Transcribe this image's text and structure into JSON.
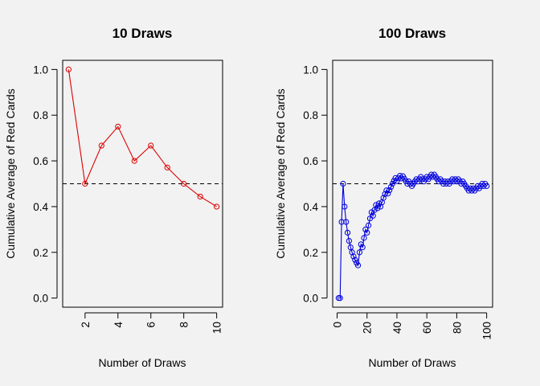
{
  "chart_data": [
    {
      "type": "line",
      "title": "10 Draws",
      "xlabel": "Number of Draws",
      "ylabel": "Cumulative Average of Red Cards",
      "xlim": [
        0.64,
        10.36
      ],
      "ylim": [
        -0.04,
        1.04
      ],
      "x_ticks": [
        2,
        4,
        6,
        8,
        10
      ],
      "y_ticks": [
        0.0,
        0.2,
        0.4,
        0.6,
        0.8,
        1.0
      ],
      "x_tick_labels": [
        "2",
        "4",
        "6",
        "8",
        "10"
      ],
      "y_tick_labels": [
        "0.0",
        "0.2",
        "0.4",
        "0.6",
        "0.8",
        "1.0"
      ],
      "reference_line": {
        "y": 0.5,
        "style": "dashed"
      },
      "series": [
        {
          "color": "#dd0000",
          "marker": "open-circle",
          "x": [
            1,
            2,
            3,
            4,
            5,
            6,
            7,
            8,
            9,
            10
          ],
          "y": [
            1.0,
            0.5,
            0.667,
            0.75,
            0.6,
            0.667,
            0.571,
            0.5,
            0.444,
            0.4
          ]
        }
      ]
    },
    {
      "type": "line",
      "title": "100 Draws",
      "xlabel": "Number of Draws",
      "ylabel": "Cumulative Average of Red Cards",
      "xlim": [
        -2.96,
        103.96
      ],
      "ylim": [
        -0.04,
        1.04
      ],
      "x_ticks": [
        0,
        20,
        40,
        60,
        80,
        100
      ],
      "y_ticks": [
        0.0,
        0.2,
        0.4,
        0.6,
        0.8,
        1.0
      ],
      "x_tick_labels": [
        "0",
        "20",
        "40",
        "60",
        "80",
        "100"
      ],
      "y_tick_labels": [
        "0.0",
        "0.2",
        "0.4",
        "0.6",
        "0.8",
        "1.0"
      ],
      "reference_line": {
        "y": 0.5,
        "style": "dashed"
      },
      "series": [
        {
          "color": "#0000dd",
          "marker": "open-circle",
          "x": [
            1,
            2,
            3,
            4,
            5,
            6,
            7,
            8,
            9,
            10,
            11,
            12,
            13,
            14,
            15,
            16,
            17,
            18,
            19,
            20,
            21,
            22,
            23,
            24,
            25,
            26,
            27,
            28,
            29,
            30,
            31,
            32,
            33,
            34,
            35,
            36,
            37,
            38,
            39,
            40,
            41,
            42,
            43,
            44,
            45,
            46,
            47,
            48,
            49,
            50,
            51,
            52,
            53,
            54,
            55,
            56,
            57,
            58,
            59,
            60,
            61,
            62,
            63,
            64,
            65,
            66,
            67,
            68,
            69,
            70,
            71,
            72,
            73,
            74,
            75,
            76,
            77,
            78,
            79,
            80,
            81,
            82,
            83,
            84,
            85,
            86,
            87,
            88,
            89,
            90,
            91,
            92,
            93,
            94,
            95,
            96,
            97,
            98,
            99,
            100
          ],
          "y": [
            0.0,
            0.0,
            0.333,
            0.5,
            0.4,
            0.333,
            0.286,
            0.25,
            0.222,
            0.2,
            0.182,
            0.167,
            0.154,
            0.143,
            0.2,
            0.235,
            0.222,
            0.263,
            0.3,
            0.286,
            0.318,
            0.348,
            0.375,
            0.36,
            0.385,
            0.407,
            0.393,
            0.414,
            0.4,
            0.419,
            0.438,
            0.455,
            0.471,
            0.457,
            0.472,
            0.486,
            0.5,
            0.513,
            0.525,
            0.512,
            0.524,
            0.535,
            0.523,
            0.533,
            0.522,
            0.511,
            0.5,
            0.51,
            0.5,
            0.49,
            0.5,
            0.51,
            0.52,
            0.51,
            0.52,
            0.53,
            0.52,
            0.51,
            0.52,
            0.53,
            0.52,
            0.53,
            0.54,
            0.53,
            0.54,
            0.53,
            0.52,
            0.51,
            0.52,
            0.51,
            0.5,
            0.51,
            0.5,
            0.51,
            0.5,
            0.51,
            0.52,
            0.51,
            0.52,
            0.51,
            0.52,
            0.51,
            0.5,
            0.51,
            0.5,
            0.49,
            0.48,
            0.47,
            0.48,
            0.47,
            0.48,
            0.47,
            0.48,
            0.49,
            0.48,
            0.49,
            0.5,
            0.49,
            0.5,
            0.49
          ]
        }
      ]
    }
  ]
}
